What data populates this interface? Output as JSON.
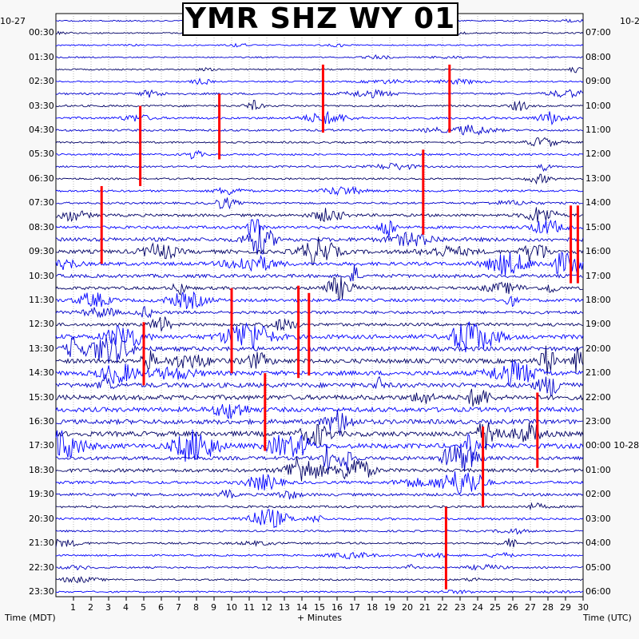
{
  "chart_data": {
    "type": "line",
    "title": "YMR SHZ WY 01",
    "xlabel": "+ Minutes",
    "left_axis_label": "Time (MDT)",
    "right_axis_label": "Time (UTC)",
    "left_date_label": "10-27",
    "right_date_label": "10-2",
    "xlim": [
      0,
      30
    ],
    "x_ticks": [
      "1",
      "2",
      "3",
      "4",
      "5",
      "6",
      "7",
      "8",
      "9",
      "10",
      "11",
      "12",
      "13",
      "14",
      "15",
      "16",
      "17",
      "18",
      "19",
      "20",
      "21",
      "22",
      "23",
      "24",
      "25",
      "26",
      "27",
      "28",
      "29",
      "30"
    ],
    "left_time_labels": [
      "00:30",
      "01:30",
      "02:30",
      "03:30",
      "04:30",
      "05:30",
      "06:30",
      "07:30",
      "08:30",
      "09:30",
      "10:30",
      "11:30",
      "12:30",
      "13:30",
      "14:30",
      "15:30",
      "16:30",
      "17:30",
      "18:30",
      "19:30",
      "20:30",
      "21:30",
      "22:30",
      "23:30"
    ],
    "right_time_labels": [
      "07:00",
      "08:00",
      "09:00",
      "10:00",
      "11:00",
      "12:00",
      "13:00",
      "14:00",
      "15:00",
      "16:00",
      "17:00",
      "18:00",
      "19:00",
      "20:00",
      "21:00",
      "22:00",
      "23:00",
      "00:00 10-28",
      "01:00",
      "02:00",
      "03:00",
      "04:00",
      "05:00",
      "06:00"
    ],
    "trace_count": 48,
    "trace_colors": [
      "#0000cc",
      "#000066",
      "#0000ff"
    ],
    "clip_color": "#ff0000",
    "activity_profile_by_hour": [
      0.5,
      0.4,
      0.6,
      1.2,
      1.4,
      1.1,
      1.0,
      1.3,
      2.2,
      3.5,
      3.0,
      2.6,
      2.5,
      4.0,
      4.2,
      4.6,
      4.4,
      4.8,
      3.2,
      2.2,
      1.6,
      1.1,
      0.9,
      0.8
    ],
    "clipped_events": [
      {
        "minute": 4.8,
        "hour_from": 3.5,
        "hour_to": 6.8
      },
      {
        "minute": 9.3,
        "hour_from": 3.0,
        "hour_to": 5.7
      },
      {
        "minute": 15.2,
        "hour_from": 1.8,
        "hour_to": 4.6
      },
      {
        "minute": 22.4,
        "hour_from": 1.8,
        "hour_to": 4.6
      },
      {
        "minute": 20.9,
        "hour_from": 5.3,
        "hour_to": 8.8
      },
      {
        "minute": 2.6,
        "hour_from": 6.8,
        "hour_to": 10.0
      },
      {
        "minute": 29.3,
        "hour_from": 7.6,
        "hour_to": 10.8
      },
      {
        "minute": 29.7,
        "hour_from": 7.6,
        "hour_to": 10.8
      },
      {
        "minute": 10.0,
        "hour_from": 11.0,
        "hour_to": 14.5
      },
      {
        "minute": 13.8,
        "hour_from": 10.9,
        "hour_to": 14.7
      },
      {
        "minute": 14.4,
        "hour_from": 11.2,
        "hour_to": 14.6
      },
      {
        "minute": 5.0,
        "hour_from": 12.4,
        "hour_to": 15.0
      },
      {
        "minute": 11.9,
        "hour_from": 14.5,
        "hour_to": 17.7
      },
      {
        "minute": 24.3,
        "hour_from": 16.7,
        "hour_to": 20.0
      },
      {
        "minute": 27.4,
        "hour_from": 15.3,
        "hour_to": 18.4
      },
      {
        "minute": 22.2,
        "hour_from": 20.0,
        "hour_to": 23.4
      }
    ]
  }
}
